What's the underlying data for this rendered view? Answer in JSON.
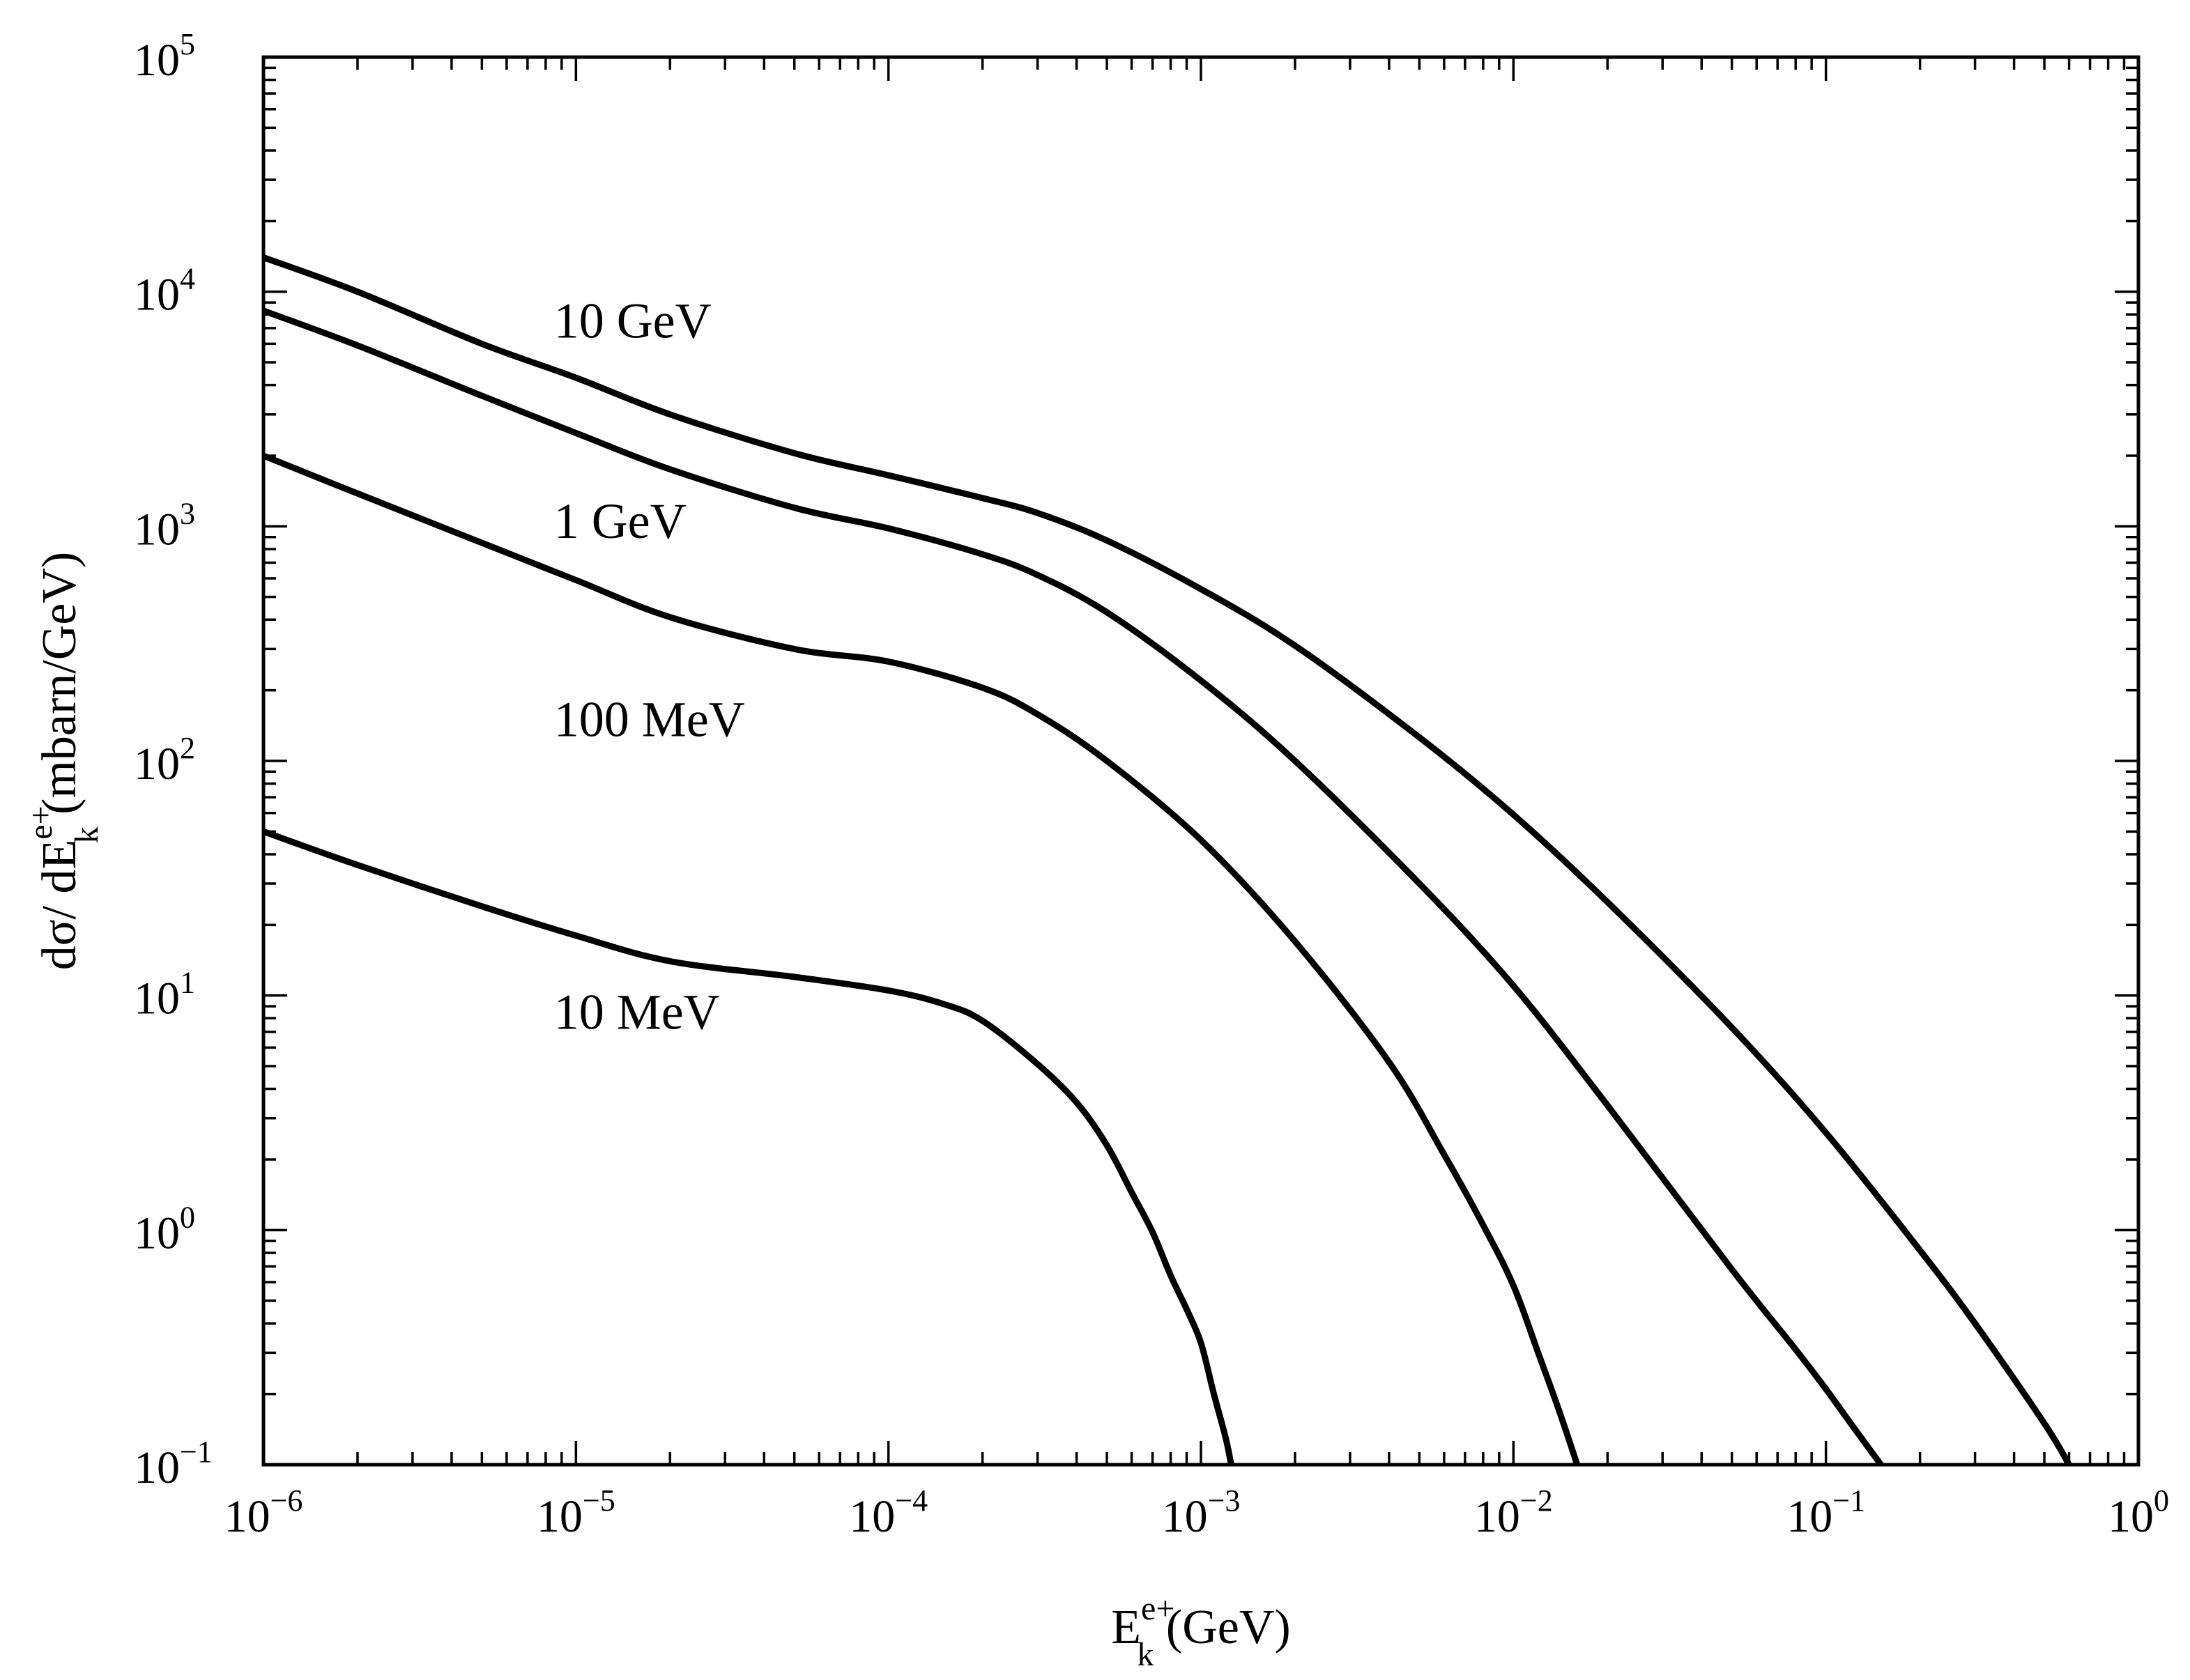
{
  "chart_data": {
    "type": "line",
    "x_scale": "log",
    "y_scale": "log",
    "xlim": [
      1e-06,
      1
    ],
    "ylim": [
      0.1,
      100000
    ],
    "xlabel": {
      "main": "E",
      "sub": "k",
      "sup": "e+",
      "unit": " (GeV)"
    },
    "ylabel": {
      "prefix": "dσ/ dE",
      "sub": "k",
      "sup": "e+",
      "unit": "  (mbarn/GeV)"
    },
    "x_ticks": [
      {
        "base": "10",
        "exp": "−6",
        "value": 1e-06
      },
      {
        "base": "10",
        "exp": "−5",
        "value": 1e-05
      },
      {
        "base": "10",
        "exp": "−4",
        "value": 0.0001
      },
      {
        "base": "10",
        "exp": "−3",
        "value": 0.001
      },
      {
        "base": "10",
        "exp": "−2",
        "value": 0.01
      },
      {
        "base": "10",
        "exp": "−1",
        "value": 0.1
      },
      {
        "base": "10",
        "exp": "0",
        "value": 1
      }
    ],
    "y_ticks": [
      {
        "base": "10",
        "exp": "−1",
        "value": 0.1
      },
      {
        "base": "10",
        "exp": "0",
        "value": 1
      },
      {
        "base": "10",
        "exp": "1",
        "value": 10
      },
      {
        "base": "10",
        "exp": "2",
        "value": 100
      },
      {
        "base": "10",
        "exp": "3",
        "value": 1000
      },
      {
        "base": "10",
        "exp": "4",
        "value": 10000
      },
      {
        "base": "10",
        "exp": "5",
        "value": 100000
      }
    ],
    "series": [
      {
        "name": "10 GeV",
        "label_at": [
          8.5e-06,
          7500
        ],
        "x": [
          1e-06,
          2e-06,
          5e-06,
          1e-05,
          2e-05,
          5e-05,
          0.0001,
          0.0002,
          0.0003,
          0.0005,
          0.001,
          0.002,
          0.005,
          0.01,
          0.02,
          0.05,
          0.1,
          0.2,
          0.3,
          0.5,
          0.6
        ],
        "y": [
          14000,
          10000,
          6000,
          4300,
          3000,
          2050,
          1650,
          1320,
          1140,
          870,
          540,
          310,
          126,
          59,
          25,
          7.3,
          2.6,
          0.82,
          0.4,
          0.15,
          0.1
        ]
      },
      {
        "name": "1 GeV",
        "label_at": [
          8.5e-06,
          1050
        ],
        "x": [
          1e-06,
          2e-06,
          5e-06,
          1e-05,
          2e-05,
          5e-05,
          0.0001,
          0.0002,
          0.0003,
          0.0005,
          0.001,
          0.002,
          0.005,
          0.01,
          0.02,
          0.05,
          0.08,
          0.1,
          0.12,
          0.15
        ],
        "y": [
          8300,
          5900,
          3600,
          2500,
          1750,
          1200,
          980,
          760,
          620,
          430,
          220,
          100,
          30,
          11,
          3.4,
          0.68,
          0.31,
          0.21,
          0.15,
          0.1
        ]
      },
      {
        "name": "100 MeV",
        "label_at": [
          8.5e-06,
          150
        ],
        "x": [
          1e-06,
          2e-06,
          5e-06,
          1e-05,
          2e-05,
          5e-05,
          0.0001,
          0.0002,
          0.0003,
          0.0005,
          0.001,
          0.002,
          0.004,
          0.006,
          0.008,
          0.01,
          0.012,
          0.014,
          0.016
        ],
        "y": [
          2000,
          1380,
          850,
          590,
          410,
          300,
          265,
          205,
          158,
          100,
          46,
          17,
          5.2,
          2.1,
          1.05,
          0.58,
          0.3,
          0.17,
          0.1
        ]
      },
      {
        "name": "10 MeV",
        "label_at": [
          8.5e-06,
          8.5
        ],
        "x": [
          1e-06,
          2e-06,
          5e-06,
          1e-05,
          2e-05,
          5e-05,
          0.0001,
          0.00015,
          0.0002,
          0.0003,
          0.0004,
          0.0005,
          0.0006,
          0.0007,
          0.0008,
          0.0009,
          0.001,
          0.0011,
          0.0012,
          0.00125
        ],
        "y": [
          50,
          36,
          24,
          18,
          14,
          12,
          10.5,
          9.2,
          7.8,
          5.1,
          3.5,
          2.3,
          1.45,
          0.98,
          0.64,
          0.46,
          0.33,
          0.2,
          0.13,
          0.1
        ]
      }
    ]
  }
}
